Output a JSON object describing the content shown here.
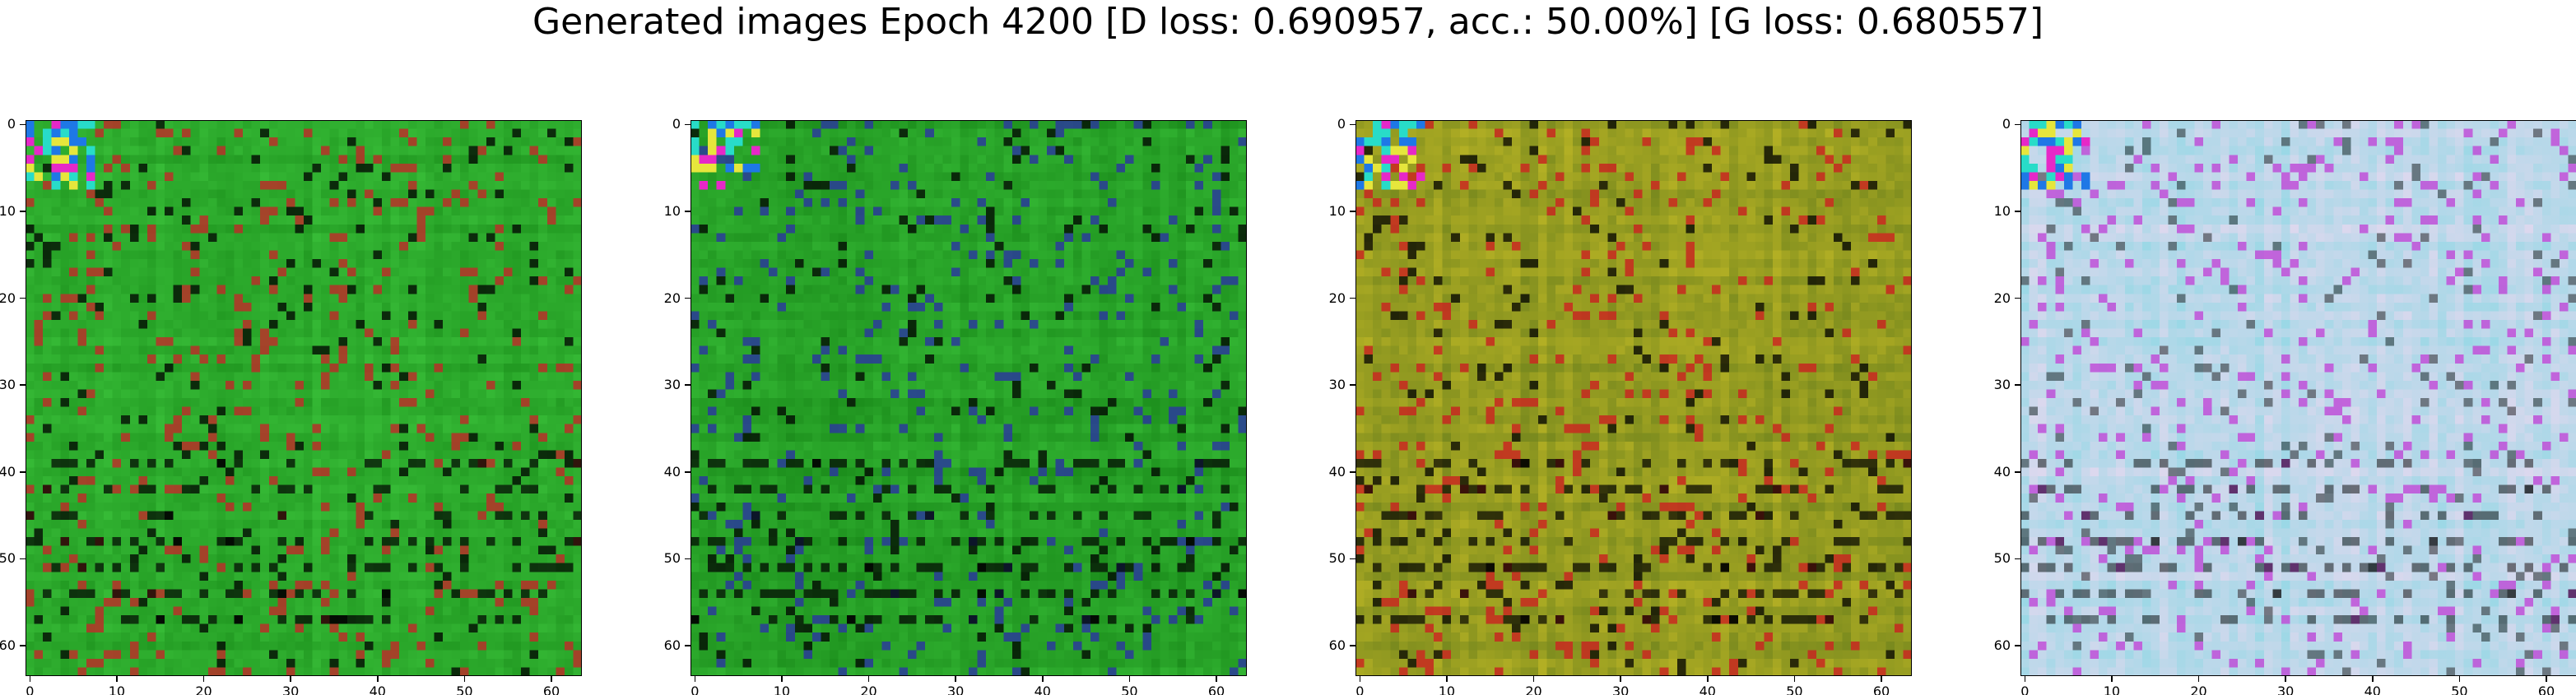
{
  "figure": {
    "title": "Generated images Epoch 4200 [D loss: 0.690957, acc.: 50.00%] [G loss: 0.680557]"
  },
  "image_grid": {
    "pixels_per_side": 64,
    "tick_values": [
      "0",
      "10",
      "20",
      "30",
      "40",
      "50",
      "60"
    ],
    "panels": [
      {
        "dominant": "green",
        "base": "#229a22",
        "accent": "#b83028",
        "bright": "#44d044"
      },
      {
        "dominant": "green",
        "base": "#1c8e1c",
        "accent": "#2a3a9a",
        "bright": "#40cc40"
      },
      {
        "dominant": "red-green-yellow",
        "base": "#7a8a1e",
        "accent": "#c82820",
        "bright": "#d8c828"
      },
      {
        "dominant": "pale-lavender",
        "base": "#dcd8ee",
        "accent": "#c050d8",
        "bright": "#70d8e0"
      }
    ]
  }
}
